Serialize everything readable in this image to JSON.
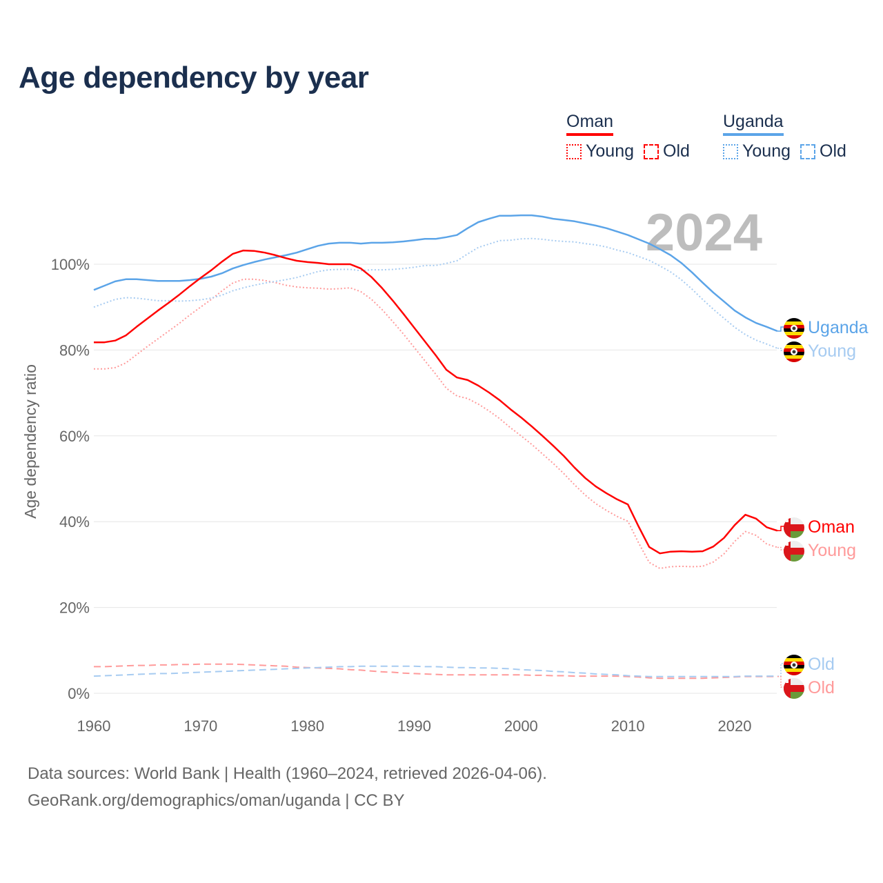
{
  "colors": {
    "oman": "#ff0000",
    "oman_light": "#ff9a9a",
    "uganda": "#5ba4e8",
    "uganda_light": "#a6cbf1",
    "title": "#1b2f4e",
    "grid": "#e6e6e6",
    "axis_text": "#666666",
    "year_watermark": "#bdbdbd"
  },
  "legend": {
    "oman": {
      "label": "Oman",
      "young": "Young",
      "old": "Old"
    },
    "uganda": {
      "label": "Uganda",
      "young": "Young",
      "old": "Old"
    }
  },
  "year_watermark": "2024",
  "footer": {
    "line1": "Data sources: World Bank | Health (1960–2024, retrieved 2026-04-06).",
    "line2": "GeoRank.org/demographics/oman/uganda | CC BY"
  },
  "chart_data": {
    "type": "line",
    "title": "Age dependency by year",
    "xlabel": "",
    "ylabel": "Age dependency ratio",
    "xlim": [
      1960,
      2024
    ],
    "ylim": [
      0,
      115
    ],
    "x_ticks": [
      "1960",
      "1970",
      "1980",
      "1990",
      "2000",
      "2010",
      "2020"
    ],
    "y_ticks": [
      "0%",
      "20%",
      "40%",
      "60%",
      "80%",
      "100%"
    ],
    "y_tick_values": [
      0,
      20,
      40,
      60,
      80,
      100
    ],
    "grid": true,
    "legend_position": "top-right",
    "x_start": 1960,
    "series": [
      {
        "id": "uganda-total",
        "name": "Uganda",
        "country": "uganda",
        "style": "solid",
        "end_label": "Uganda",
        "values": [
          94.0,
          95.0,
          96.0,
          96.5,
          96.5,
          96.3,
          96.1,
          96.1,
          96.1,
          96.3,
          96.6,
          97.1,
          97.9,
          99.0,
          99.8,
          100.5,
          101.1,
          101.6,
          102.1,
          102.7,
          103.5,
          104.3,
          104.8,
          105.0,
          105.0,
          104.8,
          105.0,
          105.0,
          105.1,
          105.3,
          105.6,
          105.9,
          105.9,
          106.3,
          106.8,
          108.4,
          109.8,
          110.6,
          111.3,
          111.3,
          111.4,
          111.4,
          111.1,
          110.6,
          110.3,
          110.0,
          109.5,
          109.0,
          108.4,
          107.6,
          106.8,
          105.8,
          104.8,
          103.5,
          102.1,
          100.3,
          98.1,
          95.7,
          93.4,
          91.3,
          89.2,
          87.6,
          86.3,
          85.4,
          84.4
        ]
      },
      {
        "id": "uganda-young",
        "name": "Uganda Young",
        "country": "uganda",
        "style": "dotted",
        "end_label": "Young",
        "values": [
          90.0,
          90.9,
          91.8,
          92.2,
          92.1,
          91.8,
          91.5,
          91.5,
          91.4,
          91.5,
          91.7,
          92.1,
          92.8,
          93.8,
          94.5,
          95.1,
          95.6,
          96.0,
          96.4,
          96.9,
          97.6,
          98.3,
          98.7,
          98.8,
          98.8,
          98.5,
          98.7,
          98.7,
          98.8,
          99.0,
          99.3,
          99.7,
          99.7,
          100.2,
          100.8,
          102.4,
          103.9,
          104.7,
          105.5,
          105.6,
          105.9,
          106.0,
          105.8,
          105.5,
          105.3,
          105.2,
          104.8,
          104.5,
          104.0,
          103.3,
          102.7,
          101.8,
          100.9,
          99.6,
          98.2,
          96.4,
          94.2,
          91.8,
          89.5,
          87.4,
          85.3,
          83.6,
          82.3,
          81.4,
          80.4
        ]
      },
      {
        "id": "oman-total",
        "name": "Oman",
        "country": "oman",
        "style": "solid",
        "end_label": "Oman",
        "values": [
          81.8,
          81.8,
          82.2,
          83.4,
          85.4,
          87.3,
          89.2,
          91.0,
          92.9,
          94.9,
          96.8,
          98.6,
          100.6,
          102.4,
          103.2,
          103.1,
          102.7,
          102.1,
          101.4,
          100.8,
          100.5,
          100.3,
          100.0,
          100.0,
          100.0,
          99.0,
          97.0,
          94.4,
          91.5,
          88.4,
          85.2,
          82.0,
          78.8,
          75.4,
          73.6,
          73.0,
          71.7,
          70.1,
          68.3,
          66.2,
          64.3,
          62.2,
          60.0,
          57.7,
          55.3,
          52.6,
          50.2,
          48.2,
          46.6,
          45.2,
          44.0,
          38.9,
          34.1,
          32.6,
          33.0,
          33.1,
          33.0,
          33.1,
          34.2,
          36.2,
          39.2,
          41.6,
          40.7,
          38.7,
          37.9
        ]
      },
      {
        "id": "oman-young",
        "name": "Oman Young",
        "country": "oman",
        "style": "dotted",
        "end_label": "Young",
        "values": [
          75.6,
          75.6,
          75.9,
          77.0,
          78.9,
          80.8,
          82.6,
          84.4,
          86.2,
          88.2,
          90.0,
          91.8,
          93.8,
          95.6,
          96.5,
          96.5,
          96.2,
          95.7,
          95.1,
          94.7,
          94.5,
          94.4,
          94.2,
          94.3,
          94.5,
          93.6,
          91.8,
          89.4,
          86.6,
          83.7,
          80.6,
          77.5,
          74.4,
          71.1,
          69.3,
          68.7,
          67.4,
          65.8,
          64.0,
          61.9,
          60.0,
          58.0,
          55.8,
          53.6,
          51.2,
          48.6,
          46.2,
          44.2,
          42.6,
          41.2,
          40.1,
          35.1,
          30.5,
          29.1,
          29.5,
          29.6,
          29.5,
          29.6,
          30.6,
          32.5,
          35.4,
          37.7,
          36.8,
          34.8,
          34.0
        ]
      },
      {
        "id": "uganda-old",
        "name": "Uganda Old",
        "country": "uganda",
        "style": "dashed",
        "end_label": "Old",
        "values": [
          4.0,
          4.1,
          4.2,
          4.3,
          4.4,
          4.5,
          4.6,
          4.6,
          4.7,
          4.8,
          4.9,
          5.0,
          5.1,
          5.2,
          5.3,
          5.4,
          5.5,
          5.6,
          5.7,
          5.8,
          5.9,
          6.0,
          6.1,
          6.2,
          6.2,
          6.3,
          6.3,
          6.3,
          6.3,
          6.3,
          6.3,
          6.2,
          6.2,
          6.1,
          6.0,
          6.0,
          5.9,
          5.9,
          5.8,
          5.7,
          5.5,
          5.4,
          5.3,
          5.1,
          5.0,
          4.8,
          4.7,
          4.5,
          4.4,
          4.3,
          4.1,
          4.0,
          3.9,
          3.9,
          3.9,
          3.9,
          3.9,
          3.9,
          3.9,
          3.9,
          3.9,
          4.0,
          4.0,
          4.0,
          4.0
        ]
      },
      {
        "id": "oman-old",
        "name": "Oman Old",
        "country": "oman",
        "style": "dashed",
        "end_label": "Old",
        "values": [
          6.2,
          6.2,
          6.3,
          6.4,
          6.5,
          6.5,
          6.6,
          6.6,
          6.7,
          6.7,
          6.8,
          6.8,
          6.8,
          6.8,
          6.7,
          6.6,
          6.5,
          6.4,
          6.3,
          6.1,
          6.0,
          5.9,
          5.8,
          5.7,
          5.5,
          5.4,
          5.2,
          5.0,
          4.9,
          4.7,
          4.6,
          4.5,
          4.4,
          4.3,
          4.3,
          4.3,
          4.3,
          4.3,
          4.3,
          4.3,
          4.3,
          4.2,
          4.2,
          4.1,
          4.1,
          4.0,
          4.0,
          4.0,
          4.0,
          4.0,
          3.9,
          3.8,
          3.6,
          3.5,
          3.5,
          3.5,
          3.5,
          3.5,
          3.6,
          3.7,
          3.8,
          3.9,
          3.9,
          3.9,
          3.9
        ]
      }
    ]
  }
}
